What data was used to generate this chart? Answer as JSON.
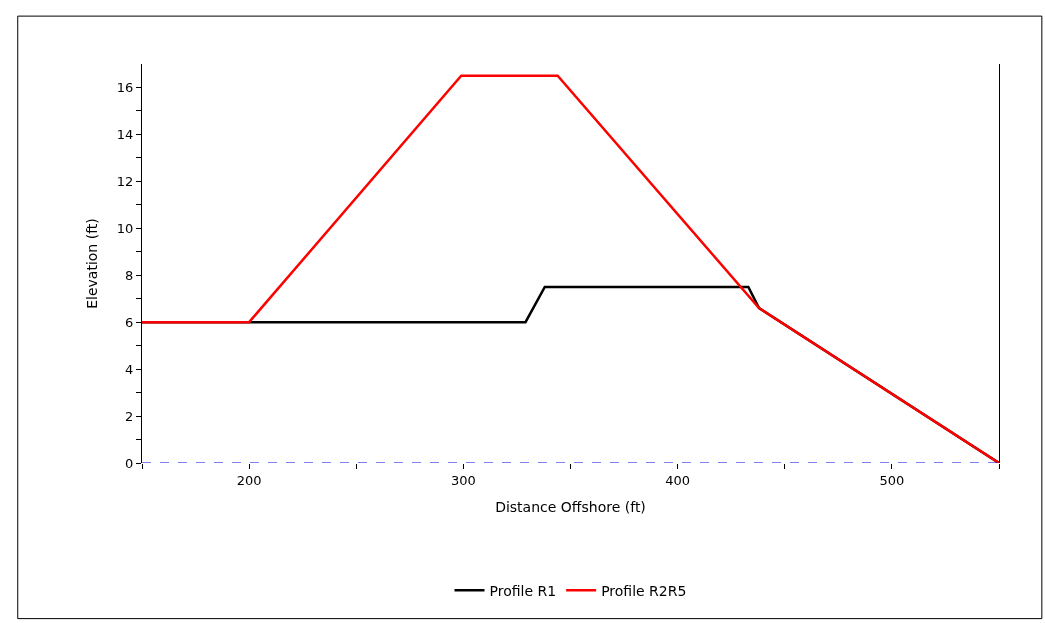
{
  "chart_data": {
    "type": "line",
    "xlabel": "Distance Offshore (ft)",
    "ylabel": "Elevation (ft)",
    "series": [
      {
        "name": "Profile R1",
        "color": "#000000",
        "x": [
          150,
          200,
          329,
          338,
          433,
          438,
          550
        ],
        "values": [
          6,
          6,
          6,
          7.5,
          7.5,
          6.6,
          0
        ]
      },
      {
        "name": "Profile R2R5",
        "color": "#ff0000",
        "x": [
          150,
          200,
          299,
          344,
          438,
          550
        ],
        "values": [
          6,
          6,
          16.5,
          16.5,
          6.6,
          0
        ]
      }
    ],
    "xlim": [
      150,
      550
    ],
    "xticks": [
      {
        "value": 150,
        "label": null
      },
      200,
      {
        "value": 250,
        "label": null
      },
      300,
      {
        "value": 350,
        "label": null
      },
      400,
      {
        "value": 450,
        "label": null
      },
      500,
      {
        "value": 550,
        "label": null
      }
    ],
    "ylim": [
      0,
      17
    ],
    "yticks": [
      0,
      {
        "value": 1,
        "label": null
      },
      2,
      {
        "value": 3,
        "label": null
      },
      4,
      {
        "value": 5,
        "label": null
      },
      6,
      {
        "value": 7,
        "label": null
      },
      8,
      {
        "value": 9,
        "label": null
      },
      10,
      {
        "value": 11,
        "label": null
      },
      12,
      {
        "value": 13,
        "label": null
      },
      14,
      {
        "value": 15,
        "label": null
      },
      16
    ],
    "ref_lines": [
      {
        "axis": "y",
        "value": 0,
        "color": "#0000cc",
        "line_style": "dashed"
      }
    ],
    "legend": "bottom",
    "marker": "none",
    "line_style": "solid"
  }
}
